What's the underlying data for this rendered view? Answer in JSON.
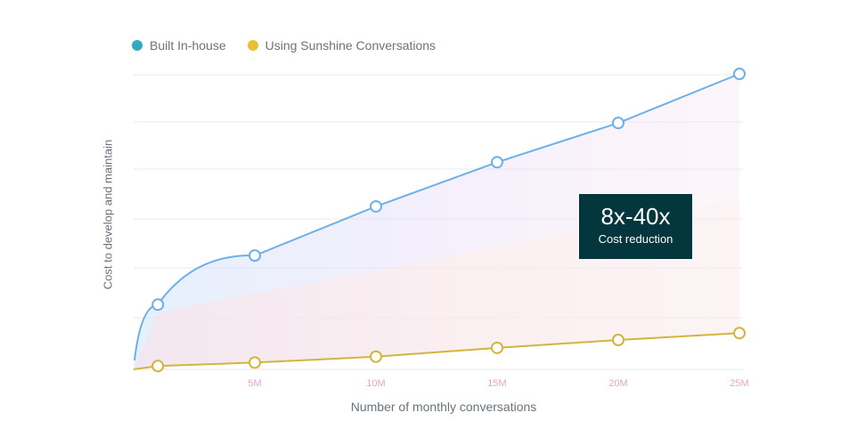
{
  "legend": [
    {
      "label": "Built In-house",
      "color": "#30aabc"
    },
    {
      "label": "Using Sunshine Conversations",
      "color": "#e9c033"
    }
  ],
  "callout": {
    "value": "8x-40x",
    "label": "Cost reduction"
  },
  "chart_data": {
    "type": "line",
    "xlabel": "Number of monthly conversations",
    "ylabel": "Cost to develop and maintain",
    "x_ticks": [
      "5M",
      "10M",
      "15M",
      "20M",
      "25M"
    ],
    "xlim": [
      0,
      25
    ],
    "ylim": [
      0,
      6
    ],
    "grid": true,
    "legend_position": "top-left",
    "series": [
      {
        "name": "Built In-house",
        "color": "#6cb0e8",
        "x": [
          1,
          5,
          10,
          15,
          20,
          25
        ],
        "y": [
          1.3,
          2.3,
          3.3,
          4.2,
          5.0,
          6.0
        ]
      },
      {
        "name": "Using Sunshine Conversations",
        "color": "#d4b43a",
        "x": [
          1,
          5,
          10,
          15,
          20,
          25
        ],
        "y": [
          0.05,
          0.12,
          0.24,
          0.42,
          0.58,
          0.72
        ]
      }
    ]
  }
}
